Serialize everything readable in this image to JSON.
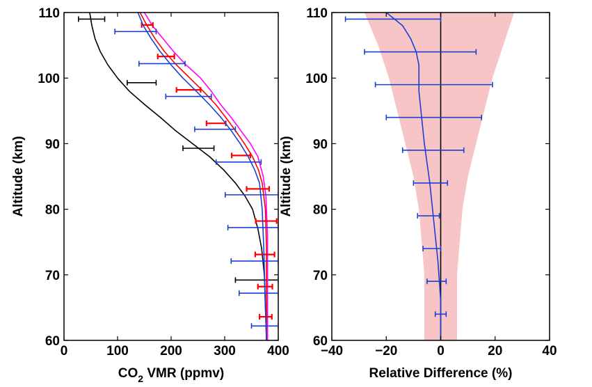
{
  "chart_data": [
    {
      "type": "line",
      "xlabel": "CO2 VMR (ppmv)",
      "xlabel_parts": {
        "pre": "CO",
        "sub": "2",
        "post": " VMR (ppmv)"
      },
      "ylabel": "Altitude (km)",
      "xlim": [
        0,
        400
      ],
      "ylim": [
        60,
        110
      ],
      "xticks": [
        "0",
        "100",
        "200",
        "300",
        "400"
      ],
      "yticks": [
        "60",
        "70",
        "80",
        "90",
        "100",
        "110"
      ],
      "grid": false,
      "series": [
        {
          "color": "#000000",
          "x": [
            48,
            52,
            58,
            68,
            82,
            100,
            122,
            150,
            180,
            208,
            240,
            272,
            298,
            320,
            338,
            352,
            362,
            369,
            374,
            378
          ],
          "y": [
            110,
            108,
            106,
            104,
            102,
            100,
            98,
            96,
            94,
            92,
            90,
            88,
            86,
            84,
            82,
            80,
            77,
            74,
            70,
            60
          ],
          "xerr_lower": [
            27,
            118,
            222,
            320
          ],
          "xerr_upper": [
            76,
            172,
            280,
            400
          ],
          "xerr_alt": [
            109,
            99.3,
            89.3,
            69.2
          ]
        },
        {
          "color": "#ff00ff",
          "x": [
            150,
            165,
            185,
            205,
            228,
            255,
            275,
            292,
            312,
            330,
            348,
            362,
            372,
            377,
            380,
            380
          ],
          "y": [
            110,
            108,
            106,
            104,
            102,
            100,
            98,
            96,
            94,
            92,
            90,
            88,
            85,
            82,
            76,
            60
          ]
        },
        {
          "color": "#ff0000",
          "x": [
            142,
            155,
            170,
            188,
            210,
            235,
            260,
            283,
            302,
            320,
            337,
            352,
            363,
            370,
            376,
            378,
            378
          ],
          "y": [
            110,
            108,
            106,
            104,
            102,
            100,
            98,
            96,
            94,
            92,
            90,
            88,
            86,
            84,
            80,
            74,
            60
          ],
          "xerr_lower": [
            145,
            175,
            210,
            266,
            313,
            341,
            358,
            357,
            362,
            365
          ],
          "xerr_upper": [
            166,
            206,
            255,
            302,
            348,
            383,
            397,
            393,
            389,
            388
          ],
          "xerr_alt": [
            108.1,
            103.3,
            98.2,
            93.1,
            88.2,
            83.1,
            78.2,
            73.1,
            68.2,
            63.6
          ]
        },
        {
          "color": "#1a3fd6",
          "x": [
            138,
            148,
            163,
            180,
            200,
            222,
            247,
            271,
            293,
            312,
            329,
            344,
            356,
            365,
            370,
            373,
            375,
            378
          ],
          "y": [
            110,
            108,
            106,
            104,
            102,
            100,
            98,
            96,
            94,
            92,
            90,
            88,
            86,
            84,
            80,
            74,
            68,
            60
          ],
          "xerr_lower": [
            95,
            140,
            190,
            244,
            284,
            301,
            306,
            312,
            327,
            350
          ],
          "xerr_upper": [
            172,
            226,
            275,
            320,
            368,
            400,
            400,
            400,
            400,
            400
          ],
          "xerr_alt": [
            107.1,
            102.2,
            97.2,
            92.2,
            87.2,
            82.2,
            77.2,
            72.1,
            67.2,
            62.2
          ]
        }
      ]
    },
    {
      "type": "line",
      "xlabel": "Relative Difference (%)",
      "ylabel": "Altitude (km)",
      "xlim": [
        -40,
        40
      ],
      "ylim": [
        60,
        110
      ],
      "xticks": [
        "−40",
        "−20",
        "0",
        "20",
        "40"
      ],
      "yticks": [
        "60",
        "70",
        "80",
        "90",
        "100",
        "110"
      ],
      "grid": false,
      "reference_line_x": 0,
      "band": {
        "color": "#f7c5c5",
        "y": [
          60,
          70,
          80,
          85,
          90,
          95,
          100,
          105,
          110
        ],
        "lower": [
          -6,
          -6,
          -8,
          -10,
          -13,
          -16,
          -19,
          -23,
          -28
        ],
        "upper": [
          6,
          6,
          8,
          10,
          13,
          16,
          19,
          23,
          27
        ]
      },
      "series": [
        {
          "color": "#1a3fd6",
          "x": [
            -20,
            -17,
            -14,
            -11,
            -9,
            -8,
            -8,
            -8,
            -7,
            -6,
            -5,
            -4,
            -3,
            -2,
            -1,
            0,
            0
          ],
          "y": [
            110,
            109,
            108,
            106,
            104,
            102,
            100,
            98,
            94,
            90,
            87,
            84,
            80,
            76,
            72,
            66,
            60
          ],
          "xerr_lower": [
            -35,
            -28,
            -24,
            -20,
            -14,
            -10,
            -8.5,
            -6.5,
            -5,
            -2
          ],
          "xerr_upper": [
            0,
            13,
            19,
            15,
            8.5,
            2.5,
            -0.5,
            0,
            2,
            2
          ],
          "xerr_alt": [
            109,
            104,
            99,
            94,
            89,
            84,
            79,
            74,
            69,
            64
          ]
        }
      ]
    }
  ]
}
